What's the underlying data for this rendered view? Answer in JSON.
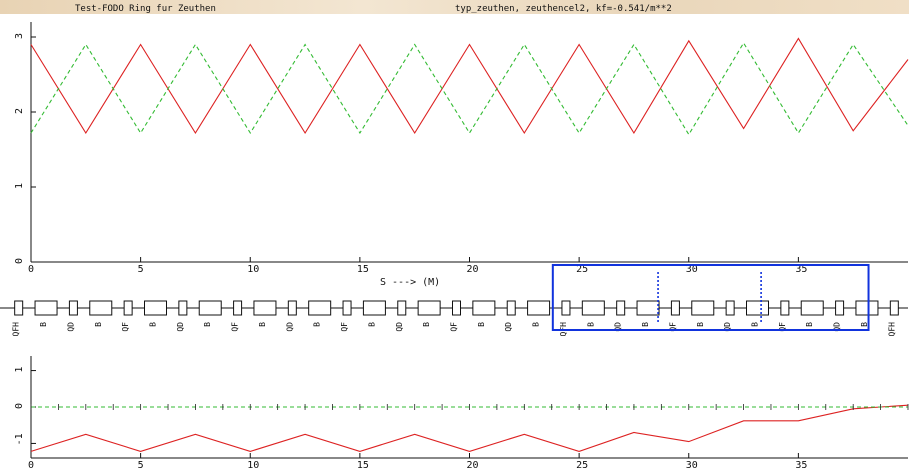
{
  "header": {
    "title_left": "Test-FODO Ring fur Zeuthen",
    "title_right": "typ_zeuthen, zeuthencel2, kf=-0.541/m**2"
  },
  "colors": {
    "beta_x": "#dd2222",
    "beta_y": "#33bb33",
    "selection_box": "#1133dd",
    "markers": "#1133dd",
    "axes": "#111111"
  },
  "xaxis_label": "S --->  (M)",
  "chart_data": [
    {
      "type": "line",
      "xlabel": "S --->  (M)",
      "xlim": [
        0,
        40
      ],
      "ylim": [
        0,
        3.2
      ],
      "xticks": [
        "0",
        "5",
        "10",
        "15",
        "20",
        "25",
        "30",
        "35"
      ],
      "yticks": [
        "0",
        "1",
        "2",
        "3"
      ],
      "series": [
        {
          "style": "solid",
          "color": "#dd2222",
          "x": [
            0,
            2.5,
            5,
            7.5,
            10,
            12.5,
            15,
            17.5,
            20,
            22.5,
            25,
            27.5,
            30,
            32.5,
            35,
            37.5,
            40
          ],
          "y": [
            2.9,
            1.72,
            2.9,
            1.72,
            2.9,
            1.72,
            2.9,
            1.72,
            2.9,
            1.72,
            2.9,
            1.72,
            2.95,
            1.78,
            2.98,
            1.75,
            2.7
          ]
        },
        {
          "style": "dashed",
          "color": "#33bb33",
          "x": [
            0,
            2.5,
            5,
            7.5,
            10,
            12.5,
            15,
            17.5,
            20,
            22.5,
            25,
            27.5,
            30,
            32.5,
            35,
            37.5,
            40
          ],
          "y": [
            1.72,
            2.9,
            1.72,
            2.9,
            1.72,
            2.9,
            1.72,
            2.9,
            1.72,
            2.9,
            1.72,
            2.9,
            1.7,
            2.92,
            1.72,
            2.9,
            1.82
          ]
        }
      ]
    },
    {
      "type": "line",
      "xlim": [
        0,
        40
      ],
      "ylim": [
        -1.4,
        1.4
      ],
      "xticks": [
        "0",
        "5",
        "10",
        "15",
        "20",
        "25",
        "30",
        "35"
      ],
      "yticks": [
        "-1",
        "0",
        "1"
      ],
      "series": [
        {
          "style": "solid",
          "color": "#dd2222",
          "x": [
            0,
            2.5,
            5,
            7.5,
            10,
            12.5,
            15,
            17.5,
            20,
            22.5,
            25,
            27.5,
            30,
            32.5,
            35,
            37.5,
            40
          ],
          "y": [
            -1.22,
            -0.75,
            -1.22,
            -0.75,
            -1.22,
            -0.75,
            -1.22,
            -0.75,
            -1.22,
            -0.75,
            -1.22,
            -0.7,
            -0.95,
            -0.38,
            -0.38,
            -0.05,
            0.05
          ]
        },
        {
          "style": "dashed",
          "color": "#33bb33",
          "x": [
            0,
            40
          ],
          "y": [
            0,
            0
          ]
        }
      ]
    }
  ],
  "lattice": {
    "elements": [
      {
        "label": "QFH",
        "kind": "quad"
      },
      {
        "label": "B",
        "kind": "bend"
      },
      {
        "label": "QD",
        "kind": "quad"
      },
      {
        "label": "B",
        "kind": "bend"
      },
      {
        "label": "QF",
        "kind": "quad"
      },
      {
        "label": "B",
        "kind": "bend"
      },
      {
        "label": "QD",
        "kind": "quad"
      },
      {
        "label": "B",
        "kind": "bend"
      },
      {
        "label": "QF",
        "kind": "quad"
      },
      {
        "label": "B",
        "kind": "bend"
      },
      {
        "label": "QD",
        "kind": "quad"
      },
      {
        "label": "B",
        "kind": "bend"
      },
      {
        "label": "QF",
        "kind": "quad"
      },
      {
        "label": "B",
        "kind": "bend"
      },
      {
        "label": "QD",
        "kind": "quad"
      },
      {
        "label": "B",
        "kind": "bend"
      },
      {
        "label": "QF",
        "kind": "quad"
      },
      {
        "label": "B",
        "kind": "bend"
      },
      {
        "label": "QD",
        "kind": "quad"
      },
      {
        "label": "B",
        "kind": "bend"
      },
      {
        "label": "QFH",
        "kind": "quad"
      },
      {
        "label": "B",
        "kind": "bend"
      },
      {
        "label": "QD",
        "kind": "quad"
      },
      {
        "label": "B",
        "kind": "bend"
      },
      {
        "label": "QF",
        "kind": "quad"
      },
      {
        "label": "B",
        "kind": "bend"
      },
      {
        "label": "QD",
        "kind": "quad"
      },
      {
        "label": "B",
        "kind": "bend"
      },
      {
        "label": "QF",
        "kind": "quad"
      },
      {
        "label": "B",
        "kind": "bend"
      },
      {
        "label": "QD",
        "kind": "quad"
      },
      {
        "label": "B",
        "kind": "bend"
      },
      {
        "label": "QFH",
        "kind": "quad"
      }
    ],
    "markers_s": [
      28.6,
      33.3
    ],
    "selection_s": [
      23.8,
      38.2
    ]
  }
}
